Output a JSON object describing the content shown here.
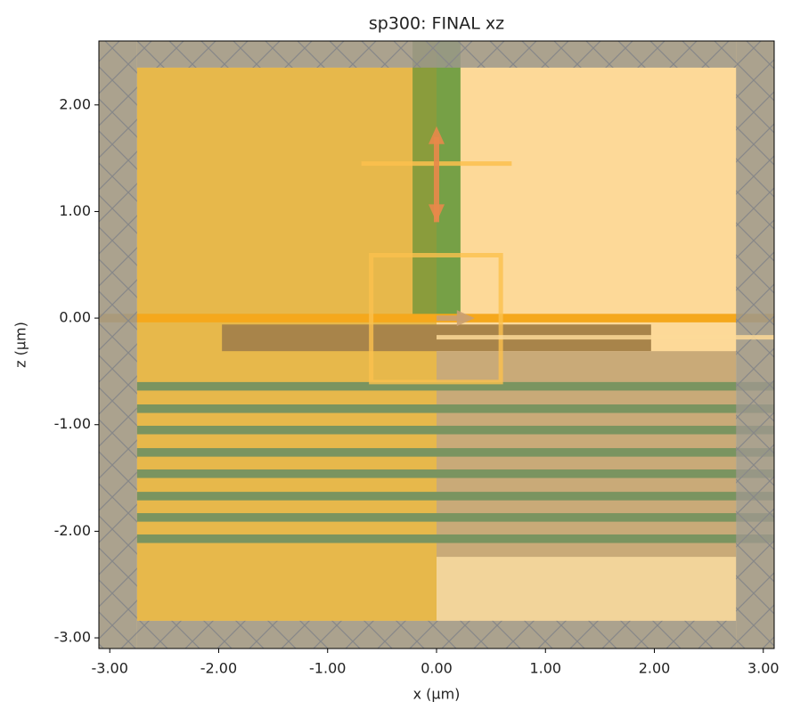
{
  "chart_data": {
    "type": "structure",
    "title": "sp300: FINAL xz",
    "xlabel": "x (μm)",
    "ylabel": "z (μm)",
    "xlim": [
      -3.1,
      3.1
    ],
    "ylim": [
      -3.1,
      2.6
    ],
    "xticks": [
      {
        "value": -3,
        "label": "-3.00"
      },
      {
        "value": -2,
        "label": "-2.00"
      },
      {
        "value": -1,
        "label": "-1.00"
      },
      {
        "value": 0,
        "label": "0.00"
      },
      {
        "value": 1,
        "label": "1.00"
      },
      {
        "value": 2,
        "label": "2.00"
      },
      {
        "value": 3,
        "label": "3.00"
      }
    ],
    "yticks": [
      {
        "value": -3,
        "label": "-3.00"
      },
      {
        "value": -2,
        "label": "-2.00"
      },
      {
        "value": -1,
        "label": "-1.00"
      },
      {
        "value": 0,
        "label": "0.00"
      },
      {
        "value": 1,
        "label": "1.00"
      },
      {
        "value": 2,
        "label": "2.00"
      }
    ],
    "background": "#fdd998",
    "structures": [
      {
        "x": [
          -2.75,
          0
        ],
        "z": [
          -2.84,
          2.35
        ],
        "color": "#e7b84b"
      },
      {
        "x": [
          0,
          2.75
        ],
        "z": [
          -2.84,
          -2.24
        ],
        "color": "#f2d49a"
      },
      {
        "x": [
          -0.22,
          0
        ],
        "z": [
          0,
          2.6
        ],
        "color": "#8a9c3c"
      },
      {
        "x": [
          0,
          0.22
        ],
        "z": [
          0,
          2.6
        ],
        "color": "#76a046"
      },
      {
        "x": [
          -1.97,
          1.97
        ],
        "z": [
          -0.31,
          -0.06
        ],
        "color": "#a8844a"
      },
      {
        "x": [
          0,
          2.75
        ],
        "z": [
          -2.24,
          -0.31
        ],
        "color": "#c9aa78"
      },
      {
        "x": [
          -3.1,
          3.1
        ],
        "z": [
          -0.04,
          0.04
        ],
        "color": "#f5a81c"
      },
      {
        "x": [
          -2.75,
          3.1
        ],
        "z": [
          -0.68,
          -0.6
        ],
        "color": "#7a9460"
      },
      {
        "x": [
          -2.75,
          3.1
        ],
        "z": [
          -0.89,
          -0.81
        ],
        "color": "#7a9460"
      },
      {
        "x": [
          -2.75,
          3.1
        ],
        "z": [
          -1.09,
          -1.01
        ],
        "color": "#7a9460"
      },
      {
        "x": [
          -2.75,
          3.1
        ],
        "z": [
          -1.3,
          -1.22
        ],
        "color": "#7a9460"
      },
      {
        "x": [
          -2.75,
          3.1
        ],
        "z": [
          -1.5,
          -1.42
        ],
        "color": "#7a9460"
      },
      {
        "x": [
          -2.75,
          3.1
        ],
        "z": [
          -1.71,
          -1.63
        ],
        "color": "#7a9460"
      },
      {
        "x": [
          -2.75,
          3.1
        ],
        "z": [
          -1.91,
          -1.83
        ],
        "color": "#7a9460"
      },
      {
        "x": [
          -2.75,
          3.1
        ],
        "z": [
          -2.11,
          -2.03
        ],
        "color": "#7a9460"
      }
    ],
    "pml": [
      {
        "x": [
          -3.1,
          -2.75
        ],
        "z": [
          -3.1,
          2.6
        ]
      },
      {
        "x": [
          2.75,
          3.1
        ],
        "z": [
          -3.1,
          2.6
        ]
      },
      {
        "x": [
          -2.75,
          2.75
        ],
        "z": [
          2.35,
          2.6
        ]
      },
      {
        "x": [
          -2.75,
          2.75
        ],
        "z": [
          -3.1,
          -2.84
        ]
      }
    ],
    "pml_color": "#9c988c",
    "monitors": [
      {
        "x": [
          -0.69,
          0.69
        ],
        "z": [
          1.45,
          1.45
        ],
        "color": "#fbc04e"
      },
      {
        "x": [
          -0.6,
          0.59
        ],
        "z": [
          -0.6,
          0.59
        ],
        "color": "#fbc04e"
      },
      {
        "x": [
          0,
          3.1
        ],
        "z": [
          -0.18,
          -0.18
        ],
        "color": "#fdd998"
      }
    ],
    "arrows": [
      {
        "x": [
          0,
          0
        ],
        "z": [
          0.9,
          1.8
        ],
        "color": "#e8884a"
      },
      {
        "x": [
          0,
          0.35
        ],
        "z": [
          0,
          0
        ],
        "color": "#c9a074"
      }
    ]
  }
}
